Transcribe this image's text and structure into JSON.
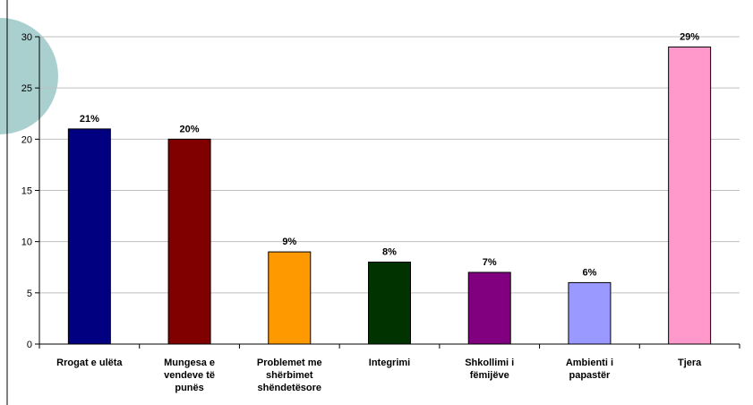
{
  "chart_data": {
    "type": "bar",
    "categories": [
      [
        "Rrogat e ulëta"
      ],
      [
        "Mungesa e",
        "vendeve të",
        "punës"
      ],
      [
        "Problemet me",
        "shërbimet",
        "shëndetësore"
      ],
      [
        "Integrimi"
      ],
      [
        "Shkollimi i",
        "fëmijëve"
      ],
      [
        "Ambienti i",
        "papastër"
      ],
      [
        "Tjera"
      ]
    ],
    "values": [
      21,
      20,
      9,
      8,
      7,
      6,
      29
    ],
    "data_labels": [
      "21%",
      "20%",
      "9%",
      "8%",
      "7%",
      "6%",
      "29%"
    ],
    "colors": [
      "#000080",
      "#800000",
      "#FF9900",
      "#003300",
      "#800080",
      "#9999FF",
      "#FF99CC"
    ],
    "ylim": [
      0,
      30
    ],
    "yticks": [
      0,
      5,
      10,
      15,
      20,
      25,
      30
    ],
    "grid": true,
    "legend": "none",
    "title": "",
    "xlabel": "",
    "ylabel": ""
  },
  "decor": {
    "left_circle_color": "#A9CFCF"
  }
}
